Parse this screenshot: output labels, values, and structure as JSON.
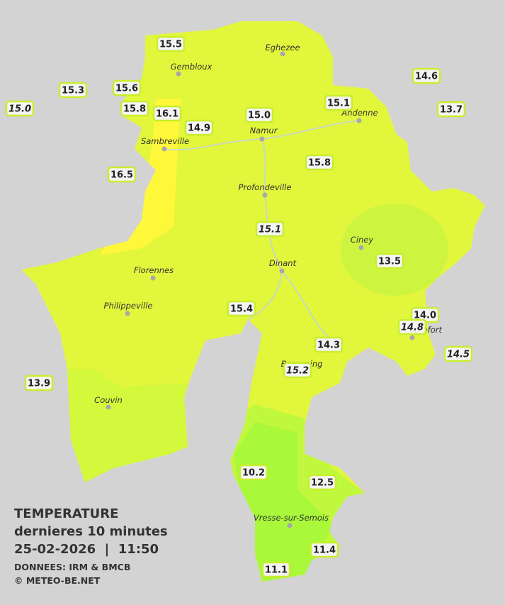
{
  "legend": {
    "title": "TEMPERATURE",
    "subtitle": "dernieres 10 minutes",
    "datetime": "25-02-2026  |  11:50",
    "source": "DONNEES: IRM & BMCB",
    "copyright": "© METEO-BE.NET"
  },
  "cities": [
    "Eghezee",
    "Gembloux",
    "Andenne",
    "Namur",
    "Sambreville",
    "Profondeville",
    "Ciney",
    "Dinant",
    "Florennes",
    "Philippeville",
    "Rochefort",
    "Beauraing",
    "Couvin",
    "Vresse-sur-Semois"
  ],
  "stations": [
    {
      "label": "15.5"
    },
    {
      "label": "15.3"
    },
    {
      "label": "15.0",
      "italic": true
    },
    {
      "label": "15.6"
    },
    {
      "label": "15.8"
    },
    {
      "label": "16.1"
    },
    {
      "label": "14.9"
    },
    {
      "label": "15.0"
    },
    {
      "label": "15.1"
    },
    {
      "label": "14.6"
    },
    {
      "label": "13.7"
    },
    {
      "label": "16.5"
    },
    {
      "label": "15.8"
    },
    {
      "label": "15.1",
      "italic": true
    },
    {
      "label": "13.5"
    },
    {
      "label": "15.4"
    },
    {
      "label": "14.0"
    },
    {
      "label": "14.8",
      "italic": true
    },
    {
      "label": "14.3"
    },
    {
      "label": "14.5",
      "italic": true
    },
    {
      "label": "15.2",
      "italic": true
    },
    {
      "label": "13.9"
    },
    {
      "label": "10.2"
    },
    {
      "label": "12.5"
    },
    {
      "label": "11.4"
    },
    {
      "label": "11.1"
    }
  ]
}
